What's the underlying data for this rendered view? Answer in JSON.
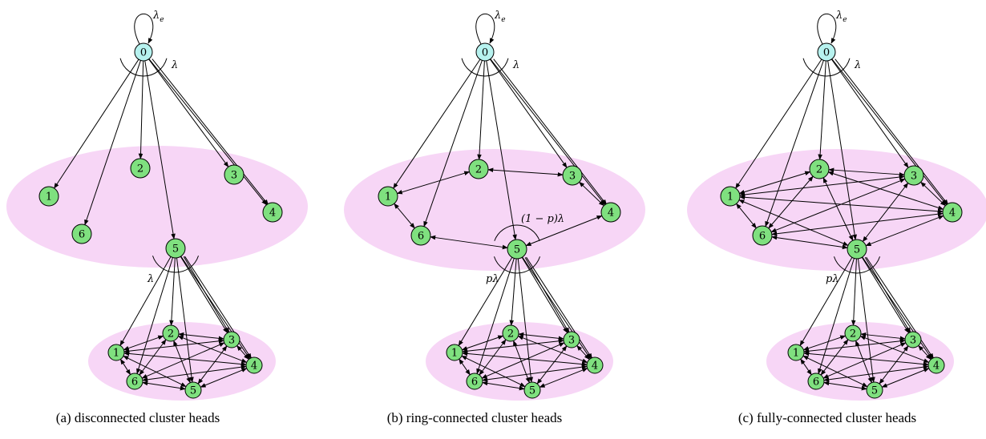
{
  "colors": {
    "ellipse_fill": "#f7d6f6",
    "member_node_fill": "#7fe07f",
    "source_node_fill": "#b7f2ef",
    "stroke": "#000000"
  },
  "subfigures": [
    {
      "id": "a",
      "caption": "(a) disconnected cluster heads",
      "top_source_label": "0",
      "self_loop_label": "λe",
      "top_rate_label": "λ",
      "top_cluster_labels": [
        "1",
        "2",
        "3",
        "4",
        "5",
        "6"
      ],
      "top_cluster_connectivity": "disconnected",
      "between_rate_label": "λ",
      "bottom_cluster_labels": [
        "1",
        "2",
        "3",
        "4",
        "5",
        "6"
      ],
      "bottom_cluster_connectivity": "fully-connected"
    },
    {
      "id": "b",
      "caption": "(b) ring-connected cluster heads",
      "top_source_label": "0",
      "self_loop_label": "λe",
      "top_rate_label": "λ",
      "top_cluster_labels": [
        "1",
        "2",
        "3",
        "4",
        "5",
        "6"
      ],
      "top_cluster_connectivity": "ring",
      "head_rate_label": "(1 − p)λ",
      "between_rate_label": "pλ",
      "bottom_cluster_labels": [
        "1",
        "2",
        "3",
        "4",
        "5",
        "6"
      ],
      "bottom_cluster_connectivity": "fully-connected"
    },
    {
      "id": "c",
      "caption": "(c) fully-connected cluster heads",
      "top_source_label": "0",
      "self_loop_label": "λe",
      "top_rate_label": "λ",
      "top_cluster_labels": [
        "1",
        "2",
        "3",
        "4",
        "5",
        "6"
      ],
      "top_cluster_connectivity": "fully-connected",
      "between_rate_label": "pλ",
      "bottom_cluster_labels": [
        "1",
        "2",
        "3",
        "4",
        "5",
        "6"
      ],
      "bottom_cluster_connectivity": "fully-connected"
    }
  ]
}
